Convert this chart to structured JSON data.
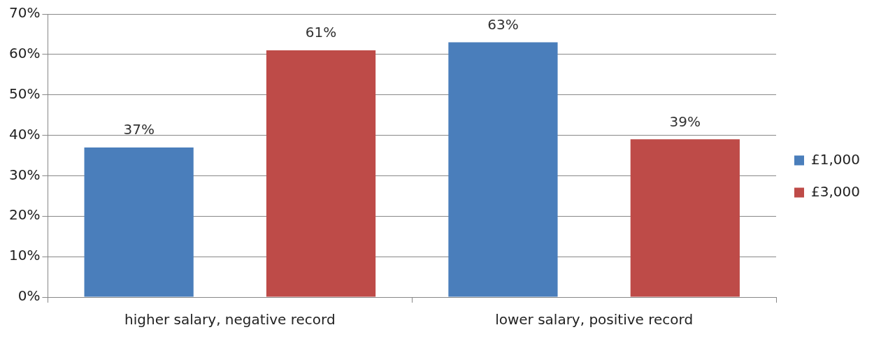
{
  "chart_data": {
    "type": "bar",
    "categories": [
      "higher salary, negative record",
      "lower salary, positive record"
    ],
    "series": [
      {
        "name": "£1,000",
        "color": "#4a7ebb",
        "values": [
          37,
          63
        ],
        "value_labels": [
          "37%",
          "63%"
        ]
      },
      {
        "name": "£3,000",
        "color": "#be4b48",
        "values": [
          61,
          39
        ],
        "value_labels": [
          "61%",
          "39%"
        ]
      }
    ],
    "ylim": [
      0,
      70
    ],
    "yticks": [
      {
        "value": 0,
        "label": "0%"
      },
      {
        "value": 10,
        "label": "10%"
      },
      {
        "value": 20,
        "label": "20%"
      },
      {
        "value": 30,
        "label": "30%"
      },
      {
        "value": 40,
        "label": "40%"
      },
      {
        "value": 50,
        "label": "50%"
      },
      {
        "value": 60,
        "label": "60%"
      },
      {
        "value": 70,
        "label": "70%"
      }
    ],
    "grid": "y",
    "legend": "right"
  }
}
